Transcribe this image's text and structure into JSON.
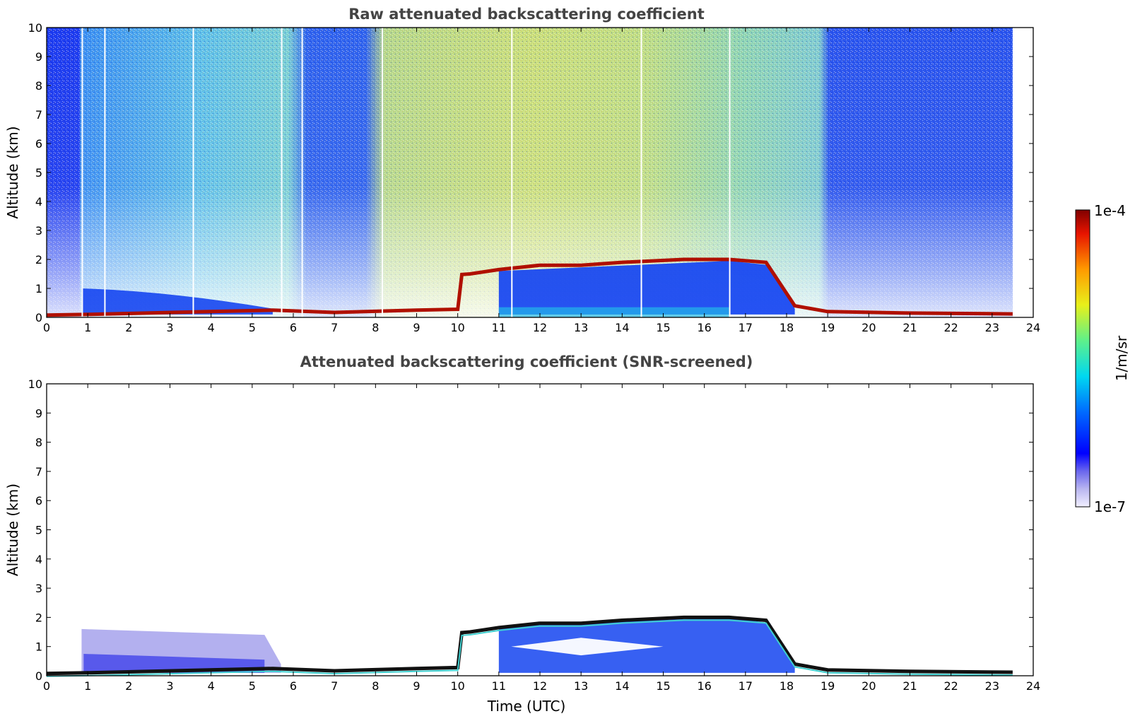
{
  "chart_data": [
    {
      "type": "heatmap",
      "title": "Raw attenuated backscattering coefficient",
      "xlabel": "",
      "ylabel": "Altitude (km)",
      "xlim": [
        0,
        24
      ],
      "ylim": [
        0,
        10
      ],
      "xticks": [
        0,
        1,
        2,
        3,
        4,
        5,
        6,
        7,
        8,
        9,
        10,
        11,
        12,
        13,
        14,
        15,
        16,
        17,
        18,
        19,
        20,
        21,
        22,
        23,
        24
      ],
      "yticks": [
        0,
        1,
        2,
        3,
        4,
        5,
        6,
        7,
        8,
        9,
        10
      ],
      "data_end_hour": 23.5,
      "cloud_layer": [
        {
          "t": 0.0,
          "alt": 0.08
        },
        {
          "t": 0.9,
          "alt": 0.1
        },
        {
          "t": 5.5,
          "alt": 0.25
        },
        {
          "t": 7.0,
          "alt": 0.17
        },
        {
          "t": 9.0,
          "alt": 0.25
        },
        {
          "t": 10.0,
          "alt": 0.28
        },
        {
          "t": 10.1,
          "alt": 1.48
        },
        {
          "t": 10.3,
          "alt": 1.5
        },
        {
          "t": 11.0,
          "alt": 1.65
        },
        {
          "t": 12.0,
          "alt": 1.8
        },
        {
          "t": 13.0,
          "alt": 1.8
        },
        {
          "t": 14.0,
          "alt": 1.9
        },
        {
          "t": 15.5,
          "alt": 2.0
        },
        {
          "t": 16.6,
          "alt": 2.0
        },
        {
          "t": 17.5,
          "alt": 1.9
        },
        {
          "t": 18.2,
          "alt": 0.4
        },
        {
          "t": 19.0,
          "alt": 0.2
        },
        {
          "t": 21.0,
          "alt": 0.15
        },
        {
          "t": 23.5,
          "alt": 0.12
        }
      ]
    },
    {
      "type": "heatmap",
      "title": "Attenuated backscattering coefficient (SNR-screened)",
      "xlabel": "Time (UTC)",
      "ylabel": "Altitude (km)",
      "xlim": [
        0,
        24
      ],
      "ylim": [
        0,
        10
      ],
      "xticks": [
        0,
        1,
        2,
        3,
        4,
        5,
        6,
        7,
        8,
        9,
        10,
        11,
        12,
        13,
        14,
        15,
        16,
        17,
        18,
        19,
        20,
        21,
        22,
        23,
        24
      ],
      "yticks": [
        0,
        1,
        2,
        3,
        4,
        5,
        6,
        7,
        8,
        9,
        10
      ],
      "data_end_hour": 23.5
    }
  ],
  "colorbar": {
    "label": "1/m/sr",
    "max_label": "1e-4",
    "min_label": "1e-7",
    "scale": "log",
    "colormap": "jet-with-light-purple-low-end"
  }
}
